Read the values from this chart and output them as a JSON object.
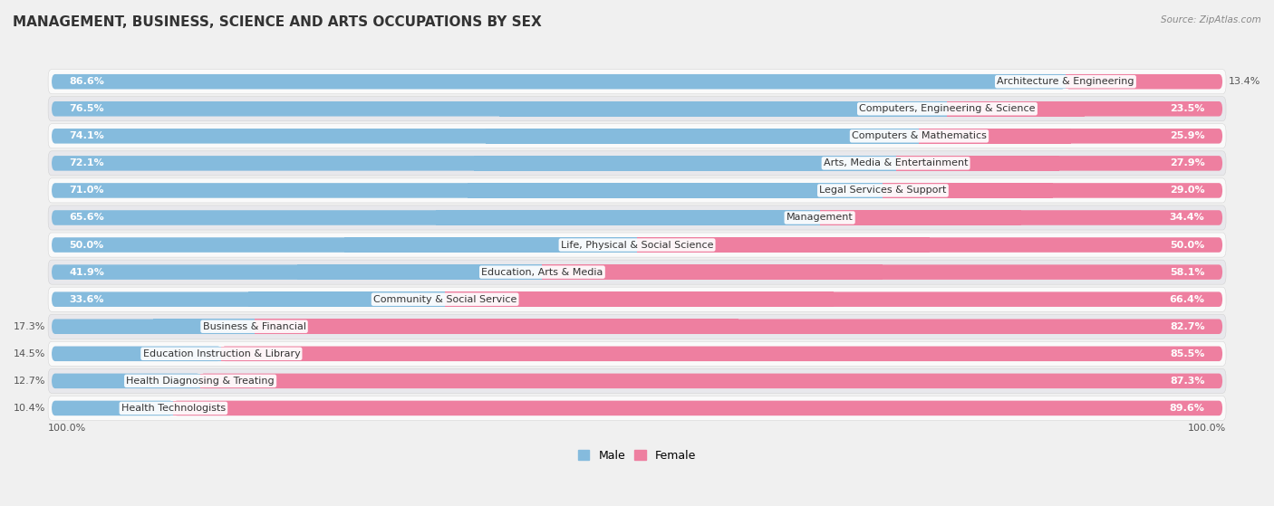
{
  "title": "MANAGEMENT, BUSINESS, SCIENCE AND ARTS OCCUPATIONS BY SEX",
  "source": "Source: ZipAtlas.com",
  "categories": [
    "Architecture & Engineering",
    "Computers, Engineering & Science",
    "Computers & Mathematics",
    "Arts, Media & Entertainment",
    "Legal Services & Support",
    "Management",
    "Life, Physical & Social Science",
    "Education, Arts & Media",
    "Community & Social Service",
    "Business & Financial",
    "Education Instruction & Library",
    "Health Diagnosing & Treating",
    "Health Technologists"
  ],
  "male_pct": [
    86.6,
    76.5,
    74.1,
    72.1,
    71.0,
    65.6,
    50.0,
    41.9,
    33.6,
    17.3,
    14.5,
    12.7,
    10.4
  ],
  "female_pct": [
    13.4,
    23.5,
    25.9,
    27.9,
    29.0,
    34.4,
    50.0,
    58.1,
    66.4,
    82.7,
    85.5,
    87.3,
    89.6
  ],
  "male_color": "#85BBDD",
  "female_color": "#EE7FA0",
  "background_color": "#F0F0F0",
  "row_bg_light": "#FAFAFA",
  "row_bg_dark": "#E8E8EC",
  "title_fontsize": 11,
  "label_fontsize": 8,
  "pct_fontsize": 8,
  "legend_fontsize": 9,
  "inside_threshold_male": 20,
  "inside_threshold_female": 20
}
